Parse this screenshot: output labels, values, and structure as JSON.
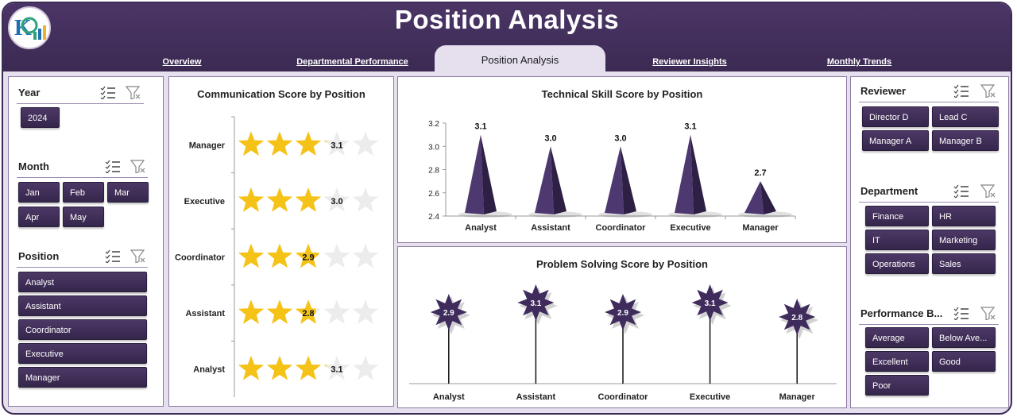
{
  "header": {
    "title": "Position Analysis",
    "tabs": [
      {
        "label": "Overview",
        "active": false
      },
      {
        "label": "Departmental Performance",
        "active": false
      },
      {
        "label": "Position Analysis",
        "active": true
      },
      {
        "label": "Reviewer Insights",
        "active": false
      },
      {
        "label": "Monthly Trends",
        "active": false
      }
    ]
  },
  "colors": {
    "header": "#3b2a52",
    "background": "#e6dfee",
    "chip": "#3d2c55",
    "shape": "#3f2b5c",
    "star_filled": "#f5c218",
    "star_empty": "#ececec"
  },
  "slicers": {
    "year": {
      "title": "Year",
      "items": [
        "2024"
      ]
    },
    "month": {
      "title": "Month",
      "items": [
        "Jan",
        "Feb",
        "Mar",
        "Apr",
        "May"
      ]
    },
    "position": {
      "title": "Position",
      "items": [
        "Analyst",
        "Assistant",
        "Coordinator",
        "Executive",
        "Manager"
      ]
    },
    "reviewer": {
      "title": "Reviewer",
      "items": [
        "Director D",
        "Lead C",
        "Manager A",
        "Manager B"
      ]
    },
    "department": {
      "title": "Department",
      "items": [
        "Finance",
        "HR",
        "IT",
        "Marketing",
        "Operations",
        "Sales"
      ]
    },
    "performance": {
      "title": "Performance B...",
      "items": [
        "Average",
        "Below Ave...",
        "Excellent",
        "Good",
        "Poor"
      ]
    }
  },
  "chart_data": [
    {
      "type": "bar",
      "title": "Communication Score by Position",
      "marker": "star-rating",
      "max_stars": 5,
      "categories": [
        "Manager",
        "Executive",
        "Coordinator",
        "Assistant",
        "Analyst"
      ],
      "values": [
        3.1,
        3.0,
        2.9,
        2.8,
        3.1
      ]
    },
    {
      "type": "bar",
      "title": "Technical Skill Score by Position",
      "marker": "pyramid",
      "categories": [
        "Analyst",
        "Assistant",
        "Coordinator",
        "Executive",
        "Manager"
      ],
      "values": [
        3.1,
        3.0,
        3.0,
        3.1,
        2.7
      ],
      "ylim": [
        2.4,
        3.2
      ],
      "yticks": [
        "2.4",
        "2.6",
        "2.8",
        "3.0",
        "3.2"
      ]
    },
    {
      "type": "bar",
      "title": "Problem Solving Score by Position",
      "marker": "starburst-lollipop",
      "categories": [
        "Analyst",
        "Assistant",
        "Coordinator",
        "Executive",
        "Manager"
      ],
      "values": [
        2.9,
        3.1,
        2.9,
        3.1,
        2.8
      ]
    }
  ]
}
